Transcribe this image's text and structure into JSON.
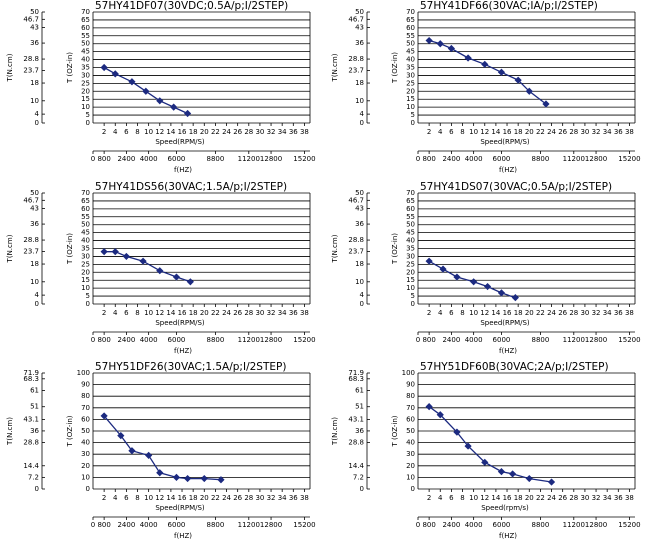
{
  "chart_data": [
    {
      "type": "line",
      "title": "57HY41DF07(30VDC;0.5A/p;I/2STEP)",
      "ylabel": "T (OZ-in)",
      "y2label": "T(N.cm)",
      "xlabel": "Speed(RPM/S)",
      "x2label": "f(HZ)",
      "x": [
        2,
        4,
        7,
        9.5,
        12,
        14.5,
        17
      ],
      "values": [
        35,
        31,
        26,
        20,
        14,
        10,
        6
      ],
      "color": "#1c2a80",
      "xlim": [
        0,
        39
      ],
      "xticks": [
        2,
        4,
        6,
        8,
        10,
        12,
        14,
        16,
        18,
        20,
        22,
        24,
        26,
        28,
        30,
        32,
        34,
        36,
        38
      ],
      "x2lim": [
        0,
        15600
      ],
      "x2ticks": [
        0,
        800,
        2400,
        4000,
        6000,
        8800,
        11200,
        12800,
        15200
      ],
      "ylim": [
        0,
        70
      ],
      "yticks": [
        0,
        5,
        10,
        15,
        20,
        25,
        30,
        35,
        40,
        45,
        50,
        55,
        60,
        65,
        70
      ],
      "y2lim": [
        0,
        50
      ],
      "y2ticks": [
        0,
        4,
        10,
        18,
        23.7,
        28.8,
        36,
        43,
        46.7,
        50
      ],
      "grid": true
    },
    {
      "type": "line",
      "title": "57HY41DF66(30VAC;IA/p;I/2STEP)",
      "ylabel": "T (OZ-in)",
      "y2label": "T(N.cm)",
      "xlabel": "Speed(RPM/S)",
      "x2label": "f(HZ)",
      "x": [
        2,
        4,
        6,
        9,
        12,
        15,
        18,
        20,
        23
      ],
      "values": [
        52,
        50,
        47,
        41,
        37,
        32,
        27,
        20,
        12
      ],
      "color": "#1c2a80",
      "xlim": [
        0,
        39
      ],
      "xticks": [
        2,
        4,
        6,
        8,
        10,
        12,
        14,
        16,
        18,
        20,
        22,
        24,
        26,
        28,
        30,
        32,
        34,
        36,
        38
      ],
      "x2lim": [
        0,
        15600
      ],
      "x2ticks": [
        0,
        800,
        2400,
        4000,
        6000,
        8800,
        11200,
        12800,
        15200
      ],
      "ylim": [
        0,
        70
      ],
      "yticks": [
        0,
        5,
        10,
        15,
        20,
        25,
        30,
        35,
        40,
        45,
        50,
        55,
        60,
        65,
        70
      ],
      "y2lim": [
        0,
        50
      ],
      "y2ticks": [
        0,
        4,
        10,
        18,
        23.7,
        28.8,
        36,
        43,
        46.7,
        50
      ],
      "grid": true
    },
    {
      "type": "line",
      "title": "57HY41DS56(30VAC;1.5A/p;I/2STEP)",
      "ylabel": "T (OZ-in)",
      "y2label": "T(N.cm)",
      "xlabel": "Speed(RPM/S)",
      "x2label": "f(HZ)",
      "x": [
        2,
        4,
        6,
        9,
        12,
        15,
        17.5
      ],
      "values": [
        33,
        33,
        30,
        27,
        21,
        17,
        14
      ],
      "color": "#1c2a80",
      "xlim": [
        0,
        39
      ],
      "xticks": [
        2,
        4,
        6,
        8,
        10,
        12,
        14,
        16,
        18,
        20,
        22,
        24,
        26,
        28,
        30,
        32,
        34,
        36,
        38
      ],
      "x2lim": [
        0,
        15600
      ],
      "x2ticks": [
        0,
        800,
        2400,
        4000,
        6000,
        8800,
        11200,
        12800,
        15200
      ],
      "ylim": [
        0,
        70
      ],
      "yticks": [
        0,
        5,
        10,
        15,
        20,
        25,
        30,
        35,
        40,
        45,
        50,
        55,
        60,
        65,
        70
      ],
      "y2lim": [
        0,
        50
      ],
      "y2ticks": [
        0,
        4,
        10,
        18,
        23.7,
        28.8,
        36,
        43,
        46.7,
        50
      ],
      "grid": true
    },
    {
      "type": "line",
      "title": "57HY41DS07(30VAC;0.5A/p;I/2STEP)",
      "ylabel": "T (OZ-in)",
      "y2label": "T(N.cm)",
      "xlabel": "Speed(RPM/S)",
      "x2label": "f(HZ)",
      "x": [
        2,
        4.5,
        7,
        10,
        12.5,
        15,
        17.5
      ],
      "values": [
        27,
        22,
        17,
        14,
        11,
        7,
        4
      ],
      "color": "#1c2a80",
      "xlim": [
        0,
        39
      ],
      "xticks": [
        2,
        4,
        6,
        8,
        10,
        12,
        14,
        16,
        18,
        20,
        22,
        24,
        26,
        28,
        30,
        32,
        34,
        36,
        38
      ],
      "x2lim": [
        0,
        15600
      ],
      "x2ticks": [
        0,
        800,
        2400,
        4000,
        6000,
        8800,
        11200,
        12800,
        15200
      ],
      "ylim": [
        0,
        70
      ],
      "yticks": [
        0,
        5,
        10,
        15,
        20,
        25,
        30,
        35,
        40,
        45,
        50,
        55,
        60,
        65,
        70
      ],
      "y2lim": [
        0,
        50
      ],
      "y2ticks": [
        0,
        4,
        10,
        18,
        23.7,
        28.8,
        36,
        43,
        46.7,
        50
      ],
      "grid": true
    },
    {
      "type": "line",
      "title": "57HY51DF26(30VAC;1.5A/p;I/2STEP)",
      "ylabel": "T (OZ-in)",
      "y2label": "T(N.cm)",
      "xlabel": "Speed(RPM/S)",
      "x2label": "f(HZ)",
      "x": [
        2,
        5,
        7,
        10,
        12,
        15,
        17,
        20,
        23
      ],
      "values": [
        63,
        46,
        33,
        29,
        14,
        10,
        9,
        9,
        8
      ],
      "color": "#1c2a80",
      "xlim": [
        0,
        39
      ],
      "xticks": [
        2,
        4,
        6,
        8,
        10,
        12,
        14,
        16,
        18,
        20,
        22,
        24,
        26,
        28,
        30,
        32,
        34,
        36,
        38
      ],
      "x2lim": [
        0,
        15600
      ],
      "x2ticks": [
        0,
        800,
        2400,
        4000,
        6000,
        8800,
        11200,
        12800,
        15200
      ],
      "ylim": [
        0,
        100
      ],
      "yticks": [
        0,
        10,
        20,
        30,
        40,
        50,
        60,
        70,
        80,
        90,
        100
      ],
      "y2lim": [
        0,
        71.9
      ],
      "y2ticks": [
        0,
        7.2,
        14.4,
        28.8,
        36,
        43.1,
        51,
        61,
        68.3,
        71.9
      ],
      "grid": true
    },
    {
      "type": "line",
      "title": "57HY51DF60B(30VAC;2A/p;I/2STEP)",
      "ylabel": "T (OZ-in)",
      "y2label": "T(N.cm)",
      "xlabel": "Speed(rpm/s)",
      "x2label": "f(HZ)",
      "x": [
        2,
        4,
        7,
        9,
        12,
        15,
        17,
        20,
        24
      ],
      "values": [
        71,
        64,
        49,
        37,
        23,
        15,
        13,
        9,
        6
      ],
      "color": "#1c2a80",
      "xlim": [
        0,
        39
      ],
      "xticks": [
        2,
        4,
        6,
        8,
        10,
        12,
        14,
        16,
        18,
        20,
        22,
        24,
        26,
        28,
        30,
        32,
        34,
        36,
        38
      ],
      "x2lim": [
        0,
        15600
      ],
      "x2ticks": [
        0,
        800,
        2400,
        4000,
        6000,
        8800,
        11200,
        12800,
        15200
      ],
      "ylim": [
        0,
        100
      ],
      "yticks": [
        0,
        10,
        20,
        30,
        40,
        50,
        60,
        70,
        80,
        90,
        100
      ],
      "y2lim": [
        0,
        71.9
      ],
      "y2ticks": [
        0,
        7.2,
        14.4,
        28.8,
        36,
        43.1,
        51,
        61,
        68.3,
        71.9
      ],
      "grid": true
    }
  ]
}
